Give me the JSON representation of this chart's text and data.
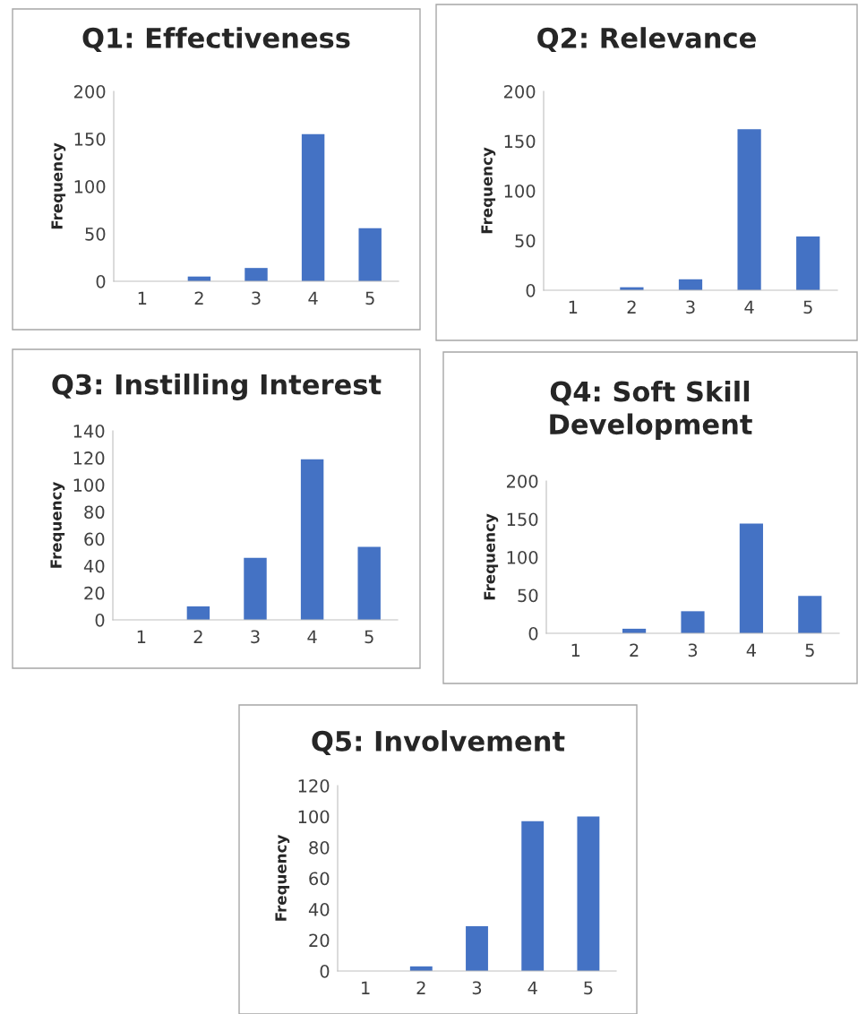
{
  "chart_data": [
    {
      "type": "bar",
      "title": "Q1: Effectiveness",
      "ylabel": "Frequency",
      "categories": [
        "1",
        "2",
        "3",
        "4",
        "5"
      ],
      "values": [
        0,
        5,
        14,
        155,
        56
      ],
      "color": "#4472c4",
      "ylim": [
        0,
        200
      ],
      "yticks": [
        0,
        50,
        100,
        150,
        200
      ],
      "grid": false,
      "legend": false
    },
    {
      "type": "bar",
      "title": "Q2: Relevance",
      "ylabel": "Frequency",
      "categories": [
        "1",
        "2",
        "3",
        "4",
        "5"
      ],
      "values": [
        0,
        3,
        11,
        162,
        54
      ],
      "color": "#4472c4",
      "ylim": [
        0,
        200
      ],
      "yticks": [
        0,
        50,
        100,
        150,
        200
      ],
      "grid": false,
      "legend": false
    },
    {
      "type": "bar",
      "title": "Q3: Instilling Interest",
      "ylabel": "Frequency",
      "categories": [
        "1",
        "2",
        "3",
        "4",
        "5"
      ],
      "values": [
        0,
        10,
        46,
        119,
        54
      ],
      "color": "#4472c4",
      "ylim": [
        0,
        140
      ],
      "yticks": [
        0,
        20,
        40,
        60,
        80,
        100,
        120,
        140
      ],
      "grid": false,
      "legend": false
    },
    {
      "type": "bar",
      "title": "Q4: Soft Skill\nDevelopment",
      "ylabel": "Frequency",
      "categories": [
        "1",
        "2",
        "3",
        "4",
        "5"
      ],
      "values": [
        0,
        6,
        29,
        144,
        49
      ],
      "color": "#4472c4",
      "ylim": [
        0,
        200
      ],
      "yticks": [
        0,
        50,
        100,
        150,
        200
      ],
      "grid": false,
      "legend": false
    },
    {
      "type": "bar",
      "title": "Q5: Involvement",
      "ylabel": "Frequency",
      "categories": [
        "1",
        "2",
        "3",
        "4",
        "5"
      ],
      "values": [
        0,
        3,
        29,
        97,
        100
      ],
      "color": "#4472c4",
      "ylim": [
        0,
        120
      ],
      "yticks": [
        0,
        20,
        40,
        60,
        80,
        100,
        120
      ],
      "grid": false,
      "legend": false
    }
  ]
}
